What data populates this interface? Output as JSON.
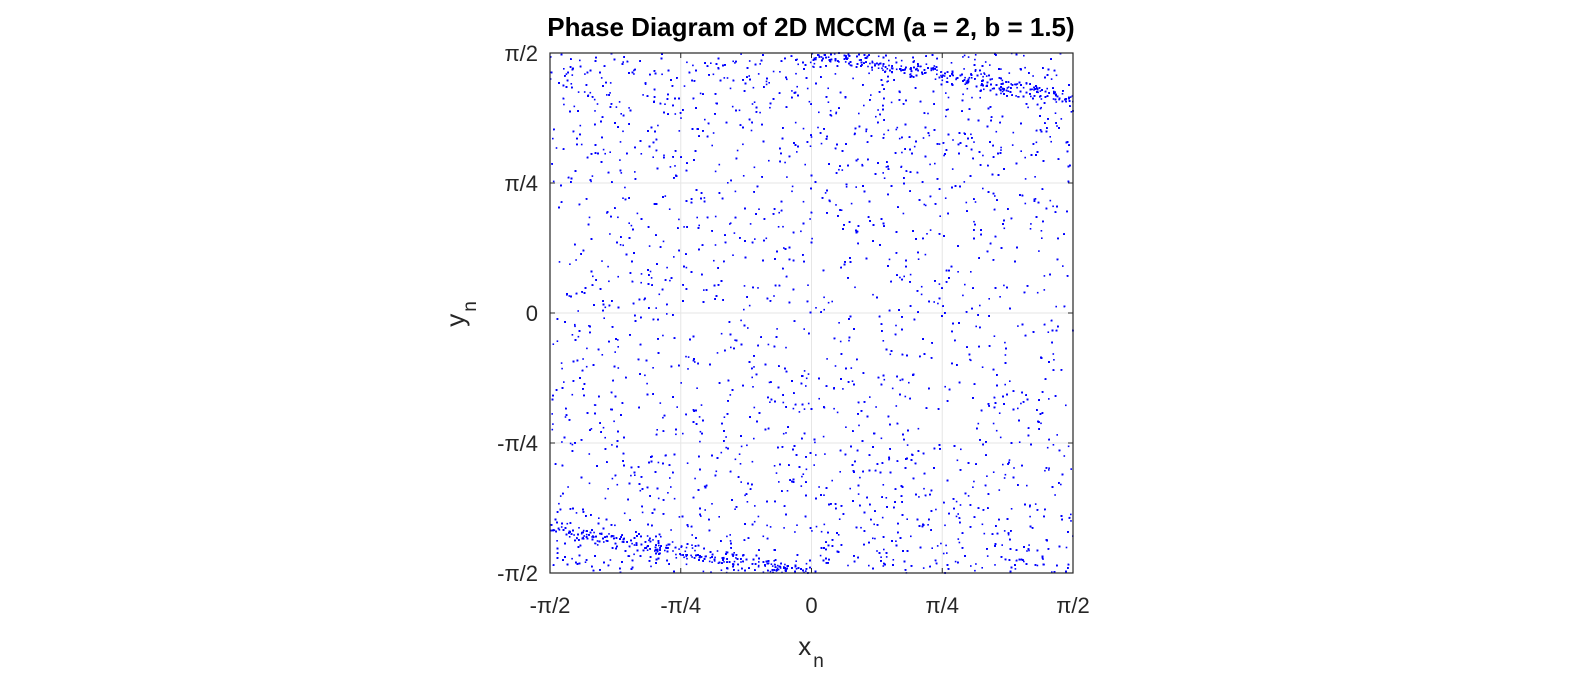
{
  "colors": {
    "points": "#0000ff",
    "axes": "#262626",
    "grid": "#e6e6e6"
  },
  "chart_data": {
    "type": "scatter",
    "title": "Phase Diagram of 2D MCCM (a = 2, b = 1.5)",
    "xlabel": {
      "main": "x",
      "sub": "n"
    },
    "ylabel": {
      "main": "y",
      "sub": "n"
    },
    "xlim": [
      -1.5708,
      1.5708
    ],
    "ylim": [
      -1.5708,
      1.5708
    ],
    "grid": true,
    "x_ticks": [
      {
        "value": -1.5708,
        "label": "-π/2"
      },
      {
        "value": -0.7854,
        "label": "-π/4"
      },
      {
        "value": 0,
        "label": "0"
      },
      {
        "value": 0.7854,
        "label": "π/4"
      },
      {
        "value": 1.5708,
        "label": "π/2"
      }
    ],
    "y_ticks": [
      {
        "value": -1.5708,
        "label": "-π/2"
      },
      {
        "value": -0.7854,
        "label": "-π/4"
      },
      {
        "value": 0,
        "label": "0"
      },
      {
        "value": 0.7854,
        "label": "π/4"
      },
      {
        "value": 1.5708,
        "label": "π/2"
      }
    ],
    "series": [
      {
        "marker": "point",
        "point_count": 15000,
        "distribution": "dense chaotic scatter filling the square, denser near the top and bottom edges, with thin bands from (0, π/2) to (π/2, 1.30) and from (-π/2, -1.30) to (0, -π/2)"
      }
    ]
  }
}
